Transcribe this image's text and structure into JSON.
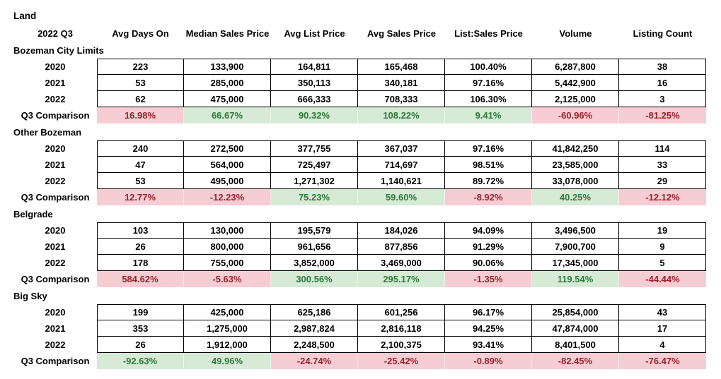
{
  "title": "Land",
  "header": {
    "period": "2022 Q3",
    "columns": [
      "Avg Days On",
      "Median Sales Price",
      "Avg List Price",
      "Avg Sales Price",
      "List:Sales Price",
      "Volume",
      "Listing Count"
    ]
  },
  "colors": {
    "good_bg": "#d6ead6",
    "good_text": "#2e7c38",
    "bad_bg": "#f6cdd3",
    "bad_text": "#9c202b",
    "text": "#000000",
    "grid_border": "#000000"
  },
  "sections": [
    {
      "name": "Bozeman City Limits",
      "slug": "bozeman-city-limits",
      "rows": [
        {
          "label": "2020",
          "cells": [
            "223",
            "133,900",
            "164,811",
            "165,468",
            "100.40%",
            "6,287,800",
            "38"
          ]
        },
        {
          "label": "2021",
          "cells": [
            "53",
            "285,000",
            "350,113",
            "340,181",
            "97.16%",
            "5,442,900",
            "16"
          ]
        },
        {
          "label": "2022",
          "cells": [
            "62",
            "475,000",
            "666,333",
            "708,333",
            "106.30%",
            "2,125,000",
            "3"
          ]
        }
      ],
      "comparison": {
        "label": "Q3 Comparison",
        "cells": [
          {
            "value": "16.98%",
            "status": "bad"
          },
          {
            "value": "66.67%",
            "status": "good"
          },
          {
            "value": "90.32%",
            "status": "good"
          },
          {
            "value": "108.22%",
            "status": "good"
          },
          {
            "value": "9.41%",
            "status": "good"
          },
          {
            "value": "-60.96%",
            "status": "bad"
          },
          {
            "value": "-81.25%",
            "status": "bad"
          }
        ]
      }
    },
    {
      "name": "Other Bozeman",
      "slug": "other-bozeman",
      "rows": [
        {
          "label": "2020",
          "cells": [
            "240",
            "272,500",
            "377,755",
            "367,037",
            "97.16%",
            "41,842,250",
            "114"
          ]
        },
        {
          "label": "2021",
          "cells": [
            "47",
            "564,000",
            "725,497",
            "714,697",
            "98.51%",
            "23,585,000",
            "33"
          ]
        },
        {
          "label": "2022",
          "cells": [
            "53",
            "495,000",
            "1,271,302",
            "1,140,621",
            "89.72%",
            "33,078,000",
            "29"
          ]
        }
      ],
      "comparison": {
        "label": "Q3 Comparison",
        "cells": [
          {
            "value": "12.77%",
            "status": "bad"
          },
          {
            "value": "-12.23%",
            "status": "bad"
          },
          {
            "value": "75.23%",
            "status": "good"
          },
          {
            "value": "59.60%",
            "status": "good"
          },
          {
            "value": "-8.92%",
            "status": "bad"
          },
          {
            "value": "40.25%",
            "status": "good"
          },
          {
            "value": "-12.12%",
            "status": "bad"
          }
        ]
      }
    },
    {
      "name": "Belgrade",
      "slug": "belgrade",
      "rows": [
        {
          "label": "2020",
          "cells": [
            "103",
            "130,000",
            "195,579",
            "184,026",
            "94.09%",
            "3,496,500",
            "19"
          ]
        },
        {
          "label": "2021",
          "cells": [
            "26",
            "800,000",
            "961,656",
            "877,856",
            "91.29%",
            "7,900,700",
            "9"
          ]
        },
        {
          "label": "2022",
          "cells": [
            "178",
            "755,000",
            "3,852,000",
            "3,469,000",
            "90.06%",
            "17,345,000",
            "5"
          ]
        }
      ],
      "comparison": {
        "label": "Q3 Comparison",
        "cells": [
          {
            "value": "584.62%",
            "status": "bad"
          },
          {
            "value": "-5.63%",
            "status": "bad"
          },
          {
            "value": "300.56%",
            "status": "good"
          },
          {
            "value": "295.17%",
            "status": "good"
          },
          {
            "value": "-1.35%",
            "status": "bad"
          },
          {
            "value": "119.54%",
            "status": "good"
          },
          {
            "value": "-44.44%",
            "status": "bad"
          }
        ]
      }
    },
    {
      "name": "Big Sky",
      "slug": "big-sky",
      "rows": [
        {
          "label": "2020",
          "cells": [
            "199",
            "425,000",
            "625,186",
            "601,256",
            "96.17%",
            "25,854,000",
            "43"
          ]
        },
        {
          "label": "2021",
          "cells": [
            "353",
            "1,275,000",
            "2,987,824",
            "2,816,118",
            "94.25%",
            "47,874,000",
            "17"
          ]
        },
        {
          "label": "2022",
          "cells": [
            "26",
            "1,912,000",
            "2,248,500",
            "2,100,375",
            "93.41%",
            "8,401,500",
            "4"
          ]
        }
      ],
      "comparison": {
        "label": "Q3 Comparison",
        "cells": [
          {
            "value": "-92.63%",
            "status": "good"
          },
          {
            "value": "49.96%",
            "status": "good"
          },
          {
            "value": "-24.74%",
            "status": "bad"
          },
          {
            "value": "-25.42%",
            "status": "bad"
          },
          {
            "value": "-0.89%",
            "status": "bad"
          },
          {
            "value": "-82.45%",
            "status": "bad"
          },
          {
            "value": "-76.47%",
            "status": "bad"
          }
        ]
      }
    }
  ]
}
